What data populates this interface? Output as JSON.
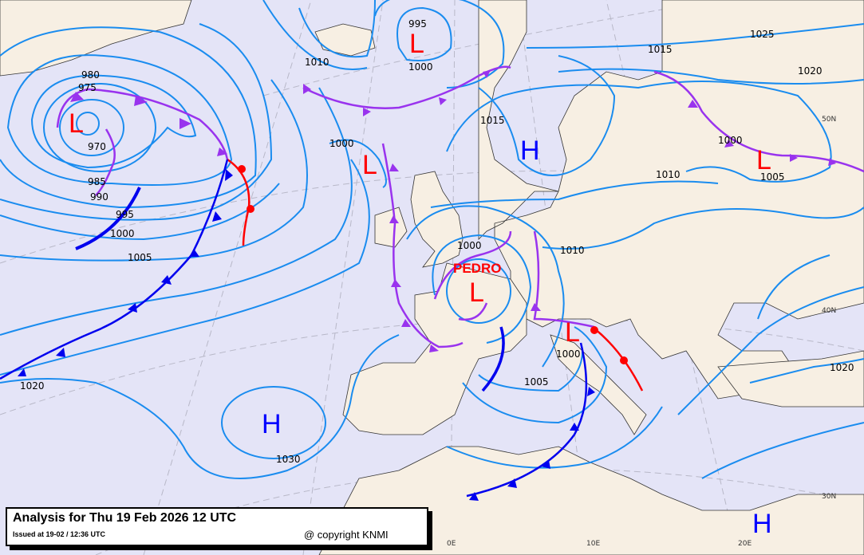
{
  "map": {
    "colors": {
      "sea": "#e4e4f7",
      "land": "#f7efe3",
      "isobar": "#1a8cef",
      "cold_front": "#0000ee",
      "warm_front": "#ff0000",
      "occluded_front": "#9933ee",
      "low": "#ff0000",
      "high": "#0000ff",
      "grid": "#b8b8c8"
    },
    "isobar_labels": [
      "980",
      "975",
      "970",
      "985",
      "990",
      "995",
      "1000",
      "1005",
      "1020",
      "1010",
      "995",
      "1000",
      "1000",
      "1015",
      "1025",
      "1015",
      "1020",
      "1000",
      "1005",
      "1010",
      "1000",
      "1010",
      "1000",
      "1005",
      "1030",
      "1020"
    ],
    "pressure_centers": [
      {
        "type": "L",
        "label": "L"
      },
      {
        "type": "L",
        "label": "L"
      },
      {
        "type": "L",
        "label": "L"
      },
      {
        "type": "H",
        "label": "H"
      },
      {
        "type": "L",
        "label": "L"
      },
      {
        "type": "L",
        "label": "L"
      },
      {
        "type": "L",
        "label": "L"
      },
      {
        "type": "H",
        "label": "H"
      },
      {
        "type": "H",
        "label": "H"
      }
    ],
    "storm_name": "PEDRO",
    "grid_labels": [
      "50N",
      "40N",
      "30N",
      "0E",
      "10E",
      "20E"
    ]
  },
  "legend": {
    "title": "Analysis for Thu 19 Feb 2026 12 UTC",
    "issued": "Issued at 19-02 / 12:36 UTC",
    "copyright": "@ copyright KNMI"
  }
}
